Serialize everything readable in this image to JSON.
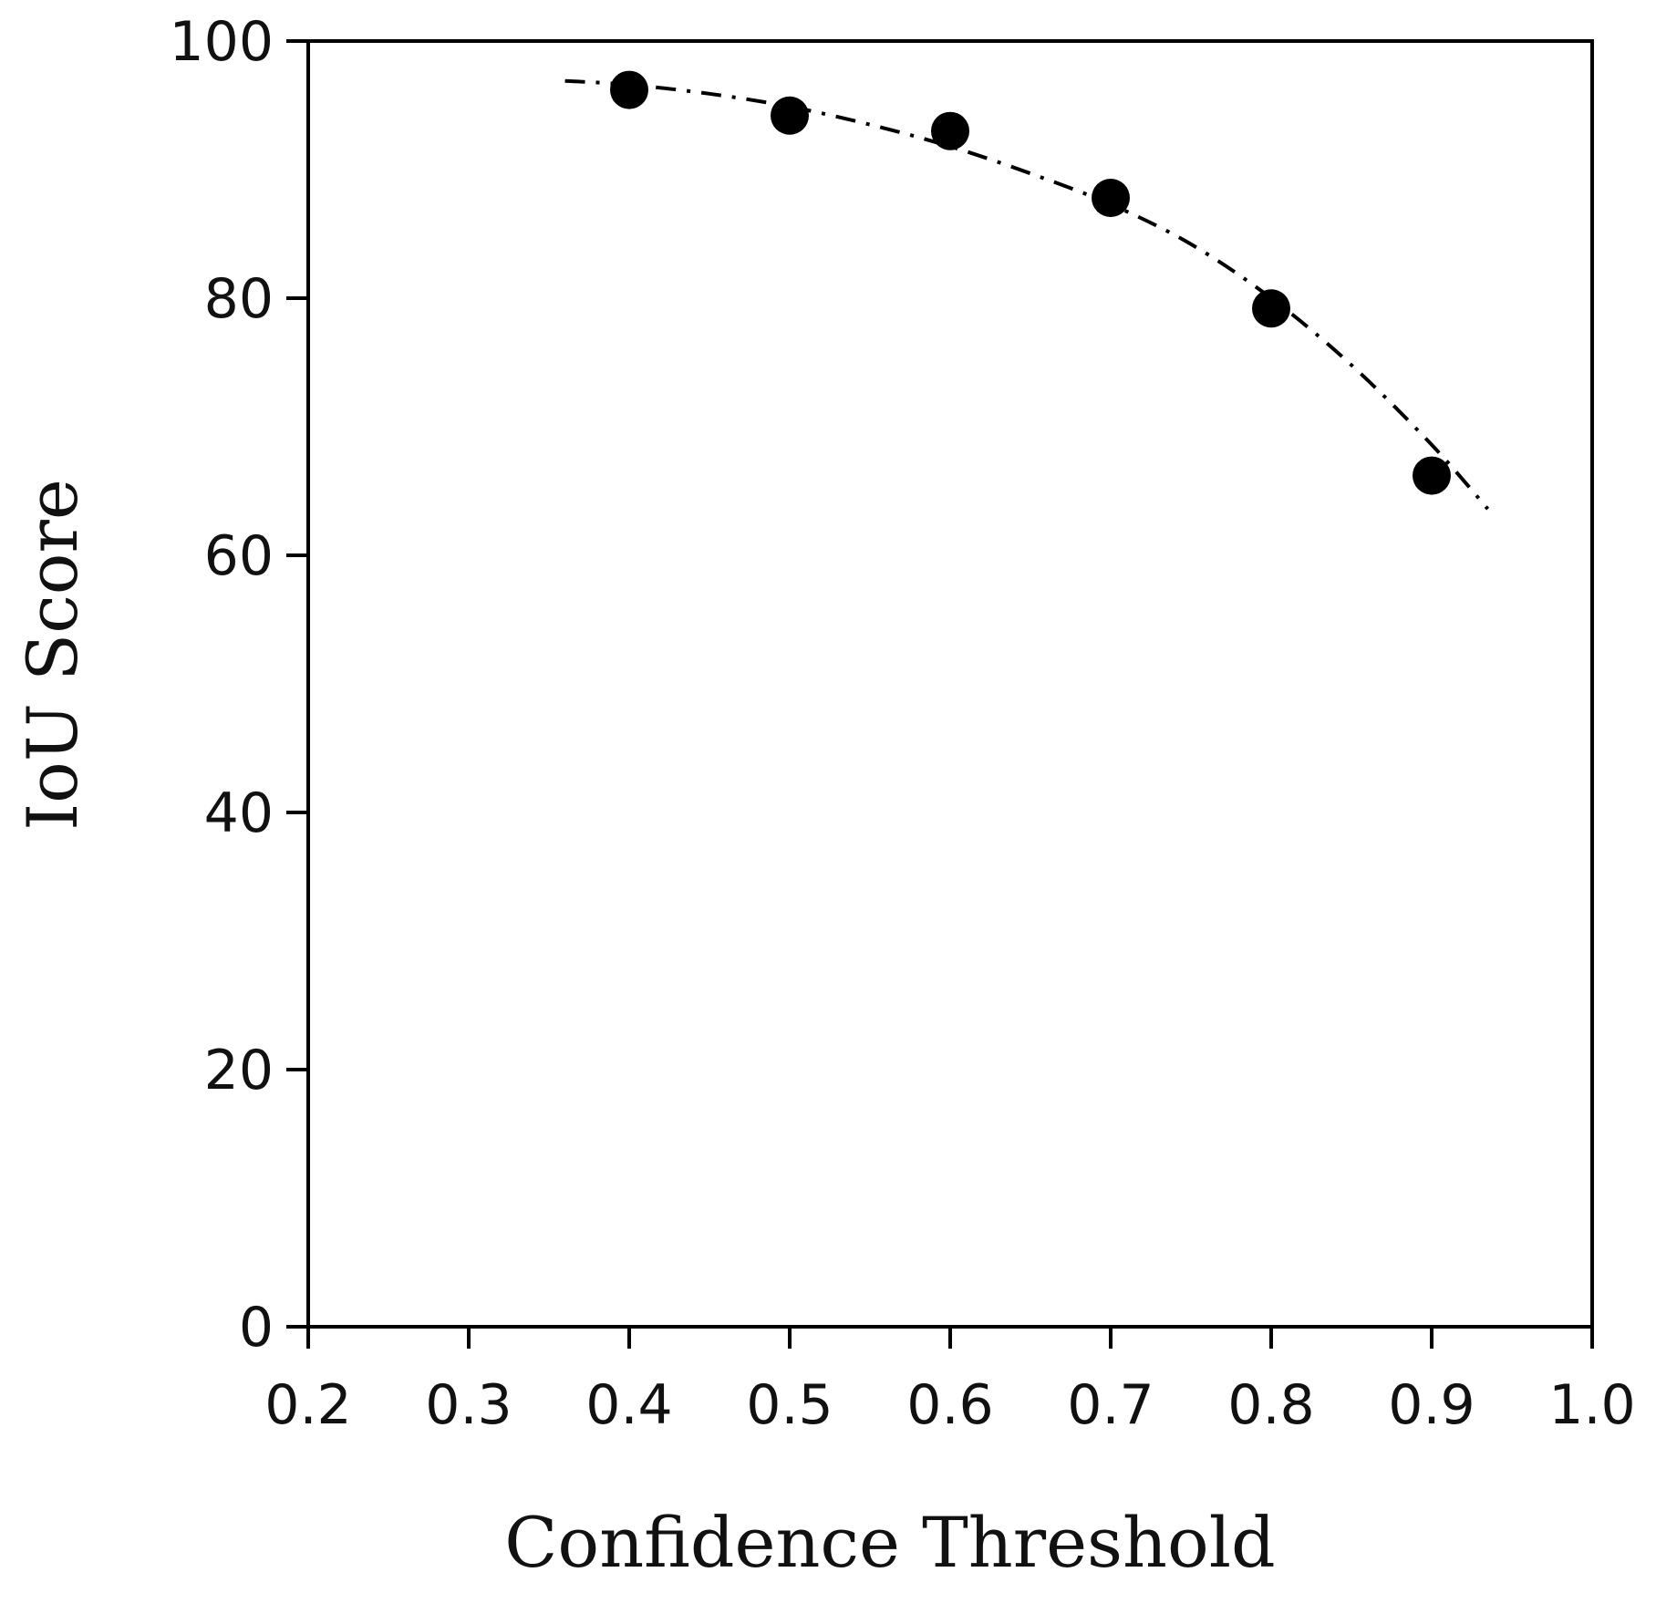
{
  "chart_data": {
    "type": "scatter",
    "title": "",
    "xlabel": "Confidence Threshold",
    "ylabel": "IoU Score",
    "xlim": [
      0.2,
      1.0
    ],
    "ylim": [
      0,
      100
    ],
    "x_ticks": [
      "0.2",
      "0.3",
      "0.4",
      "0.5",
      "0.6",
      "0.7",
      "0.8",
      "0.9",
      "1.0"
    ],
    "y_ticks": [
      "0",
      "20",
      "40",
      "60",
      "80",
      "100"
    ],
    "grid": false,
    "legend": "none",
    "series": [
      {
        "x": [
          0.4,
          0.5,
          0.6,
          0.7,
          0.8,
          0.9
        ],
        "y": [
          96.2,
          94.2,
          93.0,
          87.8,
          79.2,
          66.2
        ],
        "marker": "filled-circle",
        "color": "#000000"
      }
    ],
    "trendline": {
      "style": "dash-dot",
      "color": "#000000",
      "x": [
        0.36,
        0.4,
        0.45,
        0.5,
        0.55,
        0.6,
        0.65,
        0.7,
        0.75,
        0.8,
        0.85,
        0.9,
        0.935
      ],
      "y": [
        96.9,
        96.6,
        95.9,
        94.9,
        93.5,
        91.8,
        89.7,
        87.3,
        84.2,
        80.0,
        74.8,
        68.6,
        63.6
      ]
    }
  }
}
